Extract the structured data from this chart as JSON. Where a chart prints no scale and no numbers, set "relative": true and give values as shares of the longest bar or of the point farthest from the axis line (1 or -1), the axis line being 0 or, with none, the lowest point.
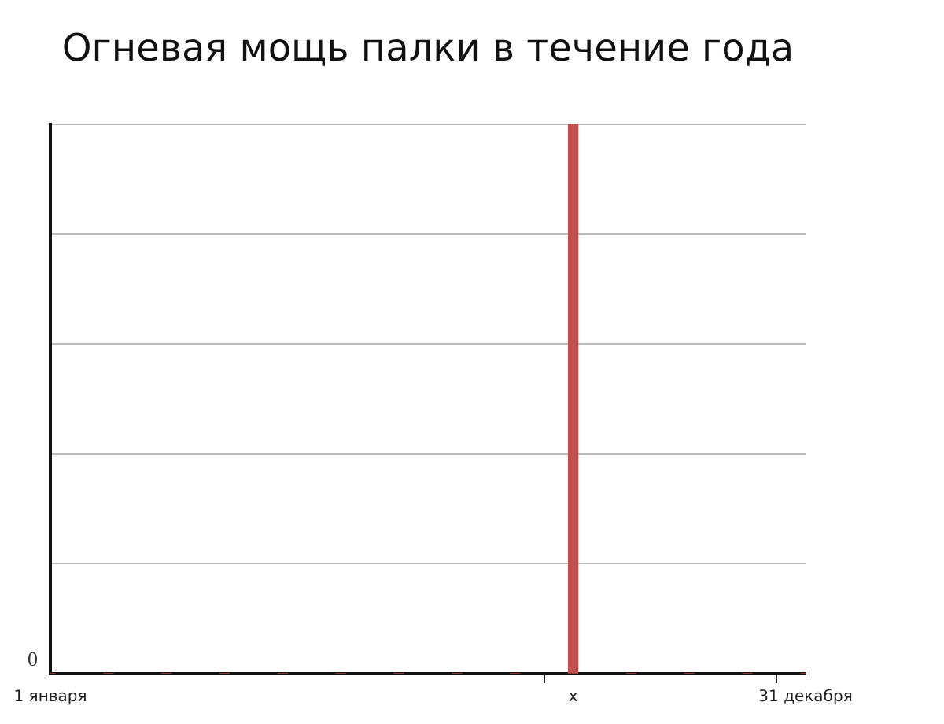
{
  "chart_data": {
    "type": "bar",
    "title": "Огневая мощь палки в течение года",
    "relative": true,
    "categories": [
      "1 января",
      null,
      null,
      null,
      null,
      null,
      null,
      null,
      null,
      "x",
      null,
      null,
      null,
      "31 декабря"
    ],
    "series": [
      {
        "color": "#c0504d",
        "values": [
          0,
          0,
          0,
          0,
          0,
          0,
          0,
          0,
          0,
          1,
          0,
          0,
          0,
          0
        ]
      }
    ],
    "annotations": [
      "0"
    ],
    "grid": "y",
    "legend": false
  }
}
